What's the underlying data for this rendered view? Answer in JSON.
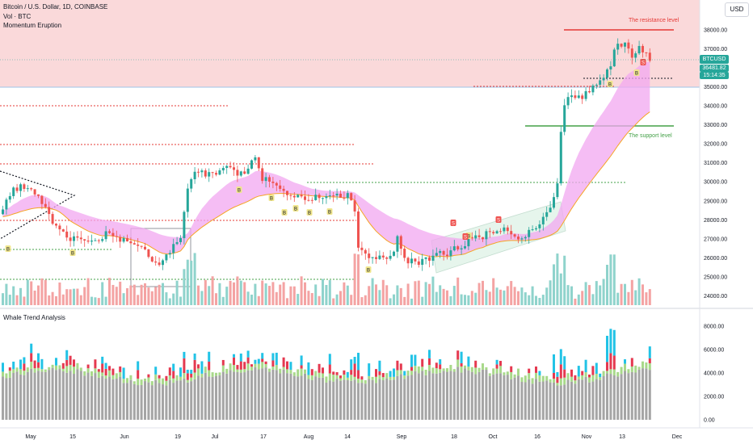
{
  "symbol_title": "Bitcoin / U.S. Dollar, 1D, COINBASE",
  "volume_label": "Vol · BTC",
  "indicator_label": "Momentum Eruption",
  "lower_pane_label": "Whale Trend Analysis",
  "currency_button": "USD",
  "price_tag": {
    "symbol": "BTCUSD",
    "price": "36481.82",
    "countdown": "15:14:35"
  },
  "annotations": {
    "resistance": "The resistance level",
    "support": "The support level"
  },
  "price_axis": [
    "38000.00",
    "37000.00",
    "36000.00",
    "35000.00",
    "34000.00",
    "33000.00",
    "32000.00",
    "31000.00",
    "30000.00",
    "29000.00",
    "28000.00",
    "27000.00",
    "26000.00",
    "25000.00",
    "24000.00"
  ],
  "osc_axis": [
    "8000.00",
    "6000.00",
    "4000.00",
    "2000.00",
    "0.00"
  ],
  "time_axis": [
    "May",
    "15",
    "Jun",
    "19",
    "Jul",
    "17",
    "Aug",
    "14",
    "Sep",
    "18",
    "Oct",
    "16",
    "Nov",
    "13",
    "Dec"
  ],
  "markers": {
    "buy": "B",
    "sell": "S"
  },
  "colors": {
    "up": "#26a69a",
    "down": "#ef5350",
    "resistance_zone": "#f7c6c8",
    "resistance_line": "#e53935",
    "support_line": "#43a047",
    "cloud": "#f2a7f0",
    "vol_up": "#8fd3cc",
    "vol_down": "#f4a3a3",
    "osc_base": "#a5a5a5",
    "osc_cyan": "#22c3e6",
    "osc_red": "#e53950",
    "osc_green": "#a8d98a"
  }
}
